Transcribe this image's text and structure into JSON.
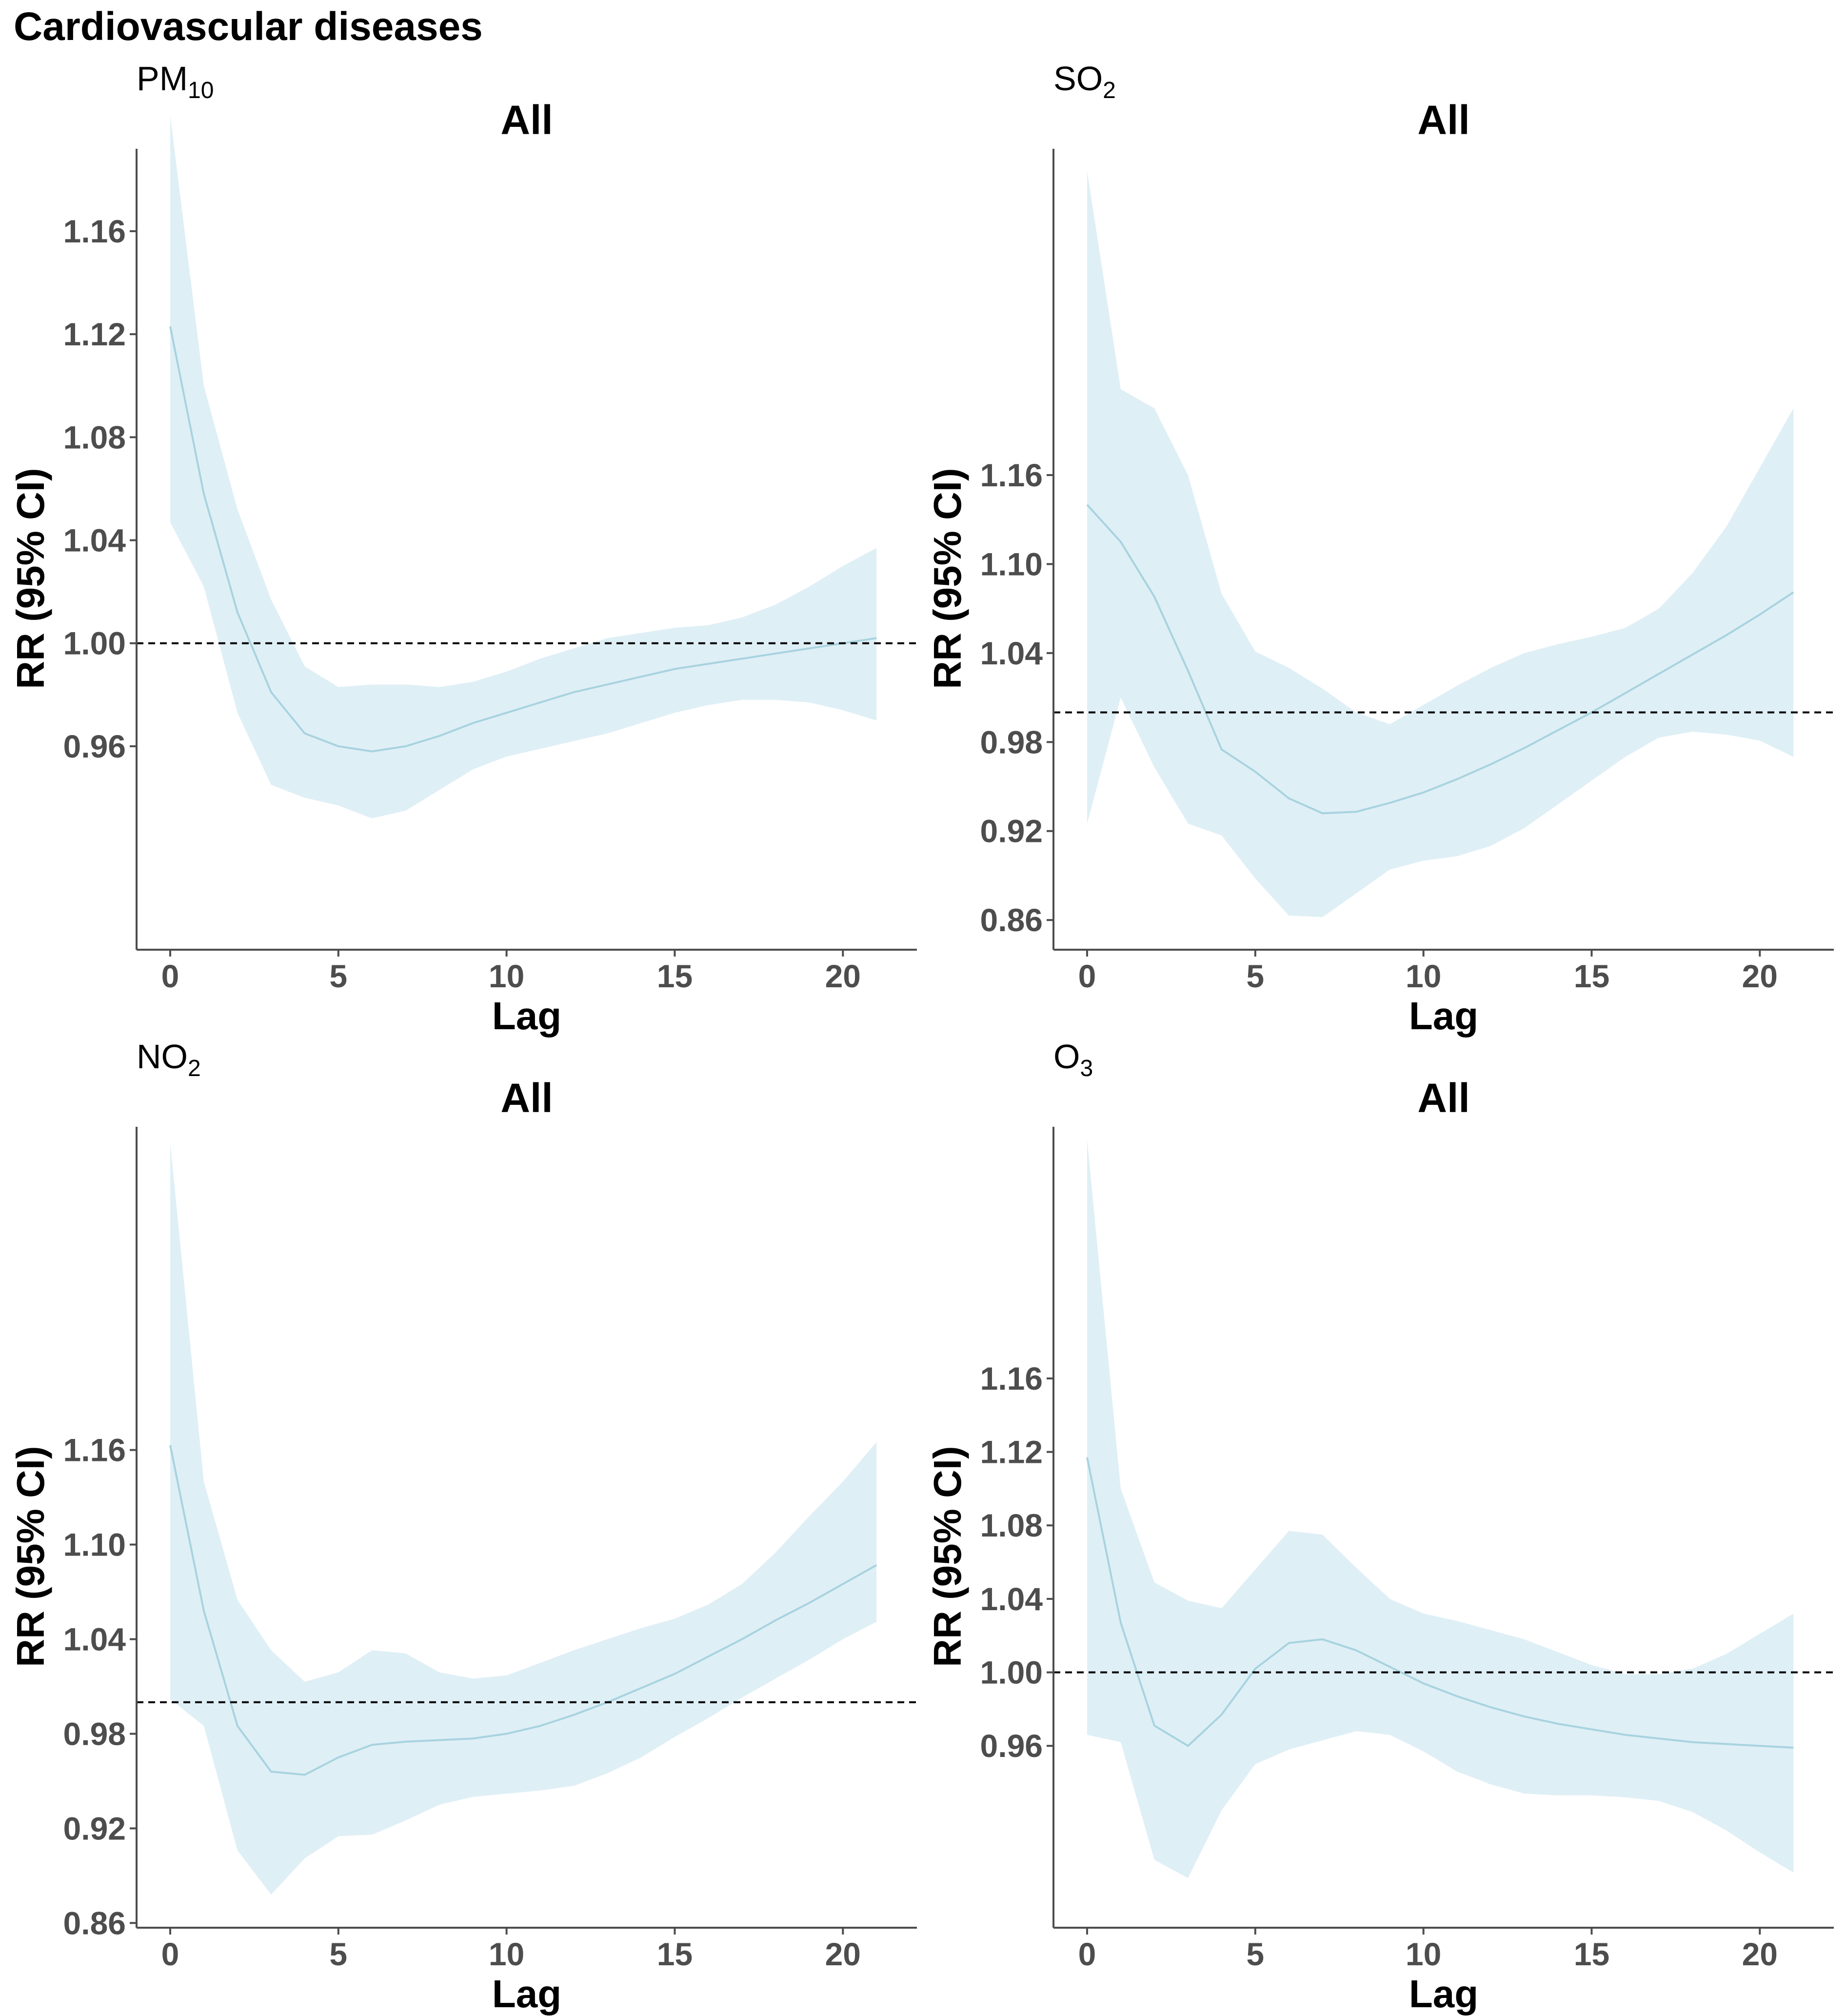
{
  "figure_title": "Cardiovascular diseases",
  "colors": {
    "band": "#dfeff6",
    "line": "#a7d3df",
    "axis": "#4d4d4d",
    "tick_label": "#4d4d4d",
    "reference": "#000000"
  },
  "chart_data": [
    {
      "type": "line",
      "id": "pm10",
      "pollutant": "PM",
      "pollutant_sub": "10",
      "title": "All",
      "xlabel": "Lag",
      "ylabel": "RR (95% CI)",
      "xlim": [
        -1,
        22.2
      ],
      "ylim": [
        0.881,
        1.192
      ],
      "xticks": [
        0,
        5,
        10,
        15,
        20
      ],
      "yticks": [
        0.96,
        1.0,
        1.04,
        1.08,
        1.12,
        1.16
      ],
      "reference": 1.0,
      "x": [
        0,
        1,
        2,
        3,
        4,
        5,
        6,
        7,
        8,
        9,
        10,
        11,
        12,
        13,
        14,
        15,
        16,
        17,
        18,
        19,
        20,
        21
      ],
      "rr": [
        1.123,
        1.058,
        1.012,
        0.981,
        0.965,
        0.96,
        0.958,
        0.96,
        0.964,
        0.969,
        0.973,
        0.977,
        0.981,
        0.984,
        0.987,
        0.99,
        0.992,
        0.994,
        0.996,
        0.998,
        1.0,
        1.002
      ],
      "lower": [
        1.047,
        1.022,
        0.973,
        0.945,
        0.94,
        0.937,
        0.932,
        0.935,
        0.943,
        0.951,
        0.956,
        0.959,
        0.962,
        0.965,
        0.969,
        0.973,
        0.976,
        0.978,
        0.978,
        0.977,
        0.974,
        0.97
      ],
      "upper": [
        1.205,
        1.1,
        1.052,
        1.017,
        0.991,
        0.983,
        0.984,
        0.984,
        0.983,
        0.985,
        0.989,
        0.994,
        0.998,
        1.002,
        1.004,
        1.006,
        1.007,
        1.01,
        1.015,
        1.022,
        1.03,
        1.037
      ]
    },
    {
      "type": "line",
      "id": "so2",
      "pollutant": "SO",
      "pollutant_sub": "2",
      "title": "All",
      "xlabel": "Lag",
      "ylabel": "RR (95% CI)",
      "xlim": [
        -1,
        22.2
      ],
      "ylim": [
        0.84,
        1.38
      ],
      "xticks": [
        0,
        5,
        10,
        15,
        20
      ],
      "yticks": [
        0.86,
        0.92,
        0.98,
        1.04,
        1.1,
        1.16
      ],
      "reference": 1.0,
      "x": [
        0,
        1,
        2,
        3,
        4,
        5,
        6,
        7,
        8,
        9,
        10,
        11,
        12,
        13,
        14,
        15,
        16,
        17,
        18,
        19,
        20,
        21
      ],
      "rr": [
        1.14,
        1.115,
        1.078,
        1.028,
        0.975,
        0.96,
        0.942,
        0.932,
        0.933,
        0.939,
        0.946,
        0.955,
        0.965,
        0.976,
        0.988,
        1.0,
        1.013,
        1.026,
        1.039,
        1.052,
        1.066,
        1.081
      ],
      "lower": [
        0.925,
        1.01,
        0.963,
        0.925,
        0.917,
        0.888,
        0.863,
        0.862,
        0.878,
        0.894,
        0.9,
        0.903,
        0.91,
        0.922,
        0.938,
        0.954,
        0.97,
        0.983,
        0.987,
        0.985,
        0.981,
        0.97
      ],
      "upper": [
        1.365,
        1.218,
        1.205,
        1.16,
        1.08,
        1.041,
        1.03,
        1.016,
        1.0,
        0.992,
        1.005,
        1.018,
        1.03,
        1.04,
        1.046,
        1.051,
        1.057,
        1.07,
        1.094,
        1.125,
        1.165,
        1.205
      ]
    },
    {
      "type": "line",
      "id": "no2",
      "pollutant": "NO",
      "pollutant_sub": "2",
      "title": "All",
      "xlabel": "Lag",
      "ylabel": "RR (95% CI)",
      "xlim": [
        -1,
        22.2
      ],
      "ylim": [
        0.857,
        1.365
      ],
      "xticks": [
        0,
        5,
        10,
        15,
        20
      ],
      "yticks": [
        0.86,
        0.92,
        0.98,
        1.04,
        1.1,
        1.16
      ],
      "reference": 1.0,
      "x": [
        0,
        1,
        2,
        3,
        4,
        5,
        6,
        7,
        8,
        9,
        10,
        11,
        12,
        13,
        14,
        15,
        16,
        17,
        18,
        19,
        20,
        21
      ],
      "rr": [
        1.163,
        1.058,
        0.985,
        0.956,
        0.954,
        0.965,
        0.973,
        0.975,
        0.976,
        0.977,
        0.98,
        0.985,
        0.992,
        1.0,
        1.009,
        1.018,
        1.029,
        1.04,
        1.052,
        1.063,
        1.075,
        1.087
      ],
      "lower": [
        1.002,
        0.985,
        0.906,
        0.878,
        0.901,
        0.915,
        0.916,
        0.925,
        0.935,
        0.94,
        0.942,
        0.944,
        0.947,
        0.955,
        0.965,
        0.978,
        0.99,
        1.003,
        1.015,
        1.027,
        1.04,
        1.051
      ],
      "upper": [
        1.355,
        1.14,
        1.065,
        1.033,
        1.013,
        1.019,
        1.033,
        1.031,
        1.019,
        1.015,
        1.017,
        1.025,
        1.033,
        1.04,
        1.047,
        1.053,
        1.062,
        1.075,
        1.095,
        1.118,
        1.14,
        1.165
      ]
    },
    {
      "type": "line",
      "id": "o3",
      "pollutant": "O",
      "pollutant_sub": "3",
      "title": "All",
      "xlabel": "Lag",
      "ylabel": "RR (95% CI)",
      "xlim": [
        -1,
        22.2
      ],
      "ylim": [
        0.861,
        1.297
      ],
      "xticks": [
        0,
        5,
        10,
        15,
        20
      ],
      "yticks": [
        0.96,
        1.0,
        1.04,
        1.08,
        1.12,
        1.16
      ],
      "reference": 1.0,
      "x": [
        0,
        1,
        2,
        3,
        4,
        5,
        6,
        7,
        8,
        9,
        10,
        11,
        12,
        13,
        14,
        15,
        16,
        17,
        18,
        19,
        20,
        21
      ],
      "rr": [
        1.117,
        1.027,
        0.971,
        0.96,
        0.977,
        1.002,
        1.016,
        1.018,
        1.012,
        1.003,
        0.994,
        0.987,
        0.981,
        0.976,
        0.972,
        0.969,
        0.966,
        0.964,
        0.962,
        0.961,
        0.96,
        0.959
      ],
      "lower": [
        0.966,
        0.962,
        0.898,
        0.888,
        0.925,
        0.95,
        0.958,
        0.963,
        0.968,
        0.966,
        0.957,
        0.946,
        0.939,
        0.934,
        0.933,
        0.933,
        0.932,
        0.93,
        0.924,
        0.914,
        0.902,
        0.891
      ],
      "upper": [
        1.29,
        1.1,
        1.049,
        1.039,
        1.035,
        1.056,
        1.077,
        1.075,
        1.057,
        1.04,
        1.032,
        1.028,
        1.023,
        1.018,
        1.011,
        1.004,
        0.999,
        0.999,
        1.002,
        1.01,
        1.021,
        1.032
      ]
    }
  ]
}
